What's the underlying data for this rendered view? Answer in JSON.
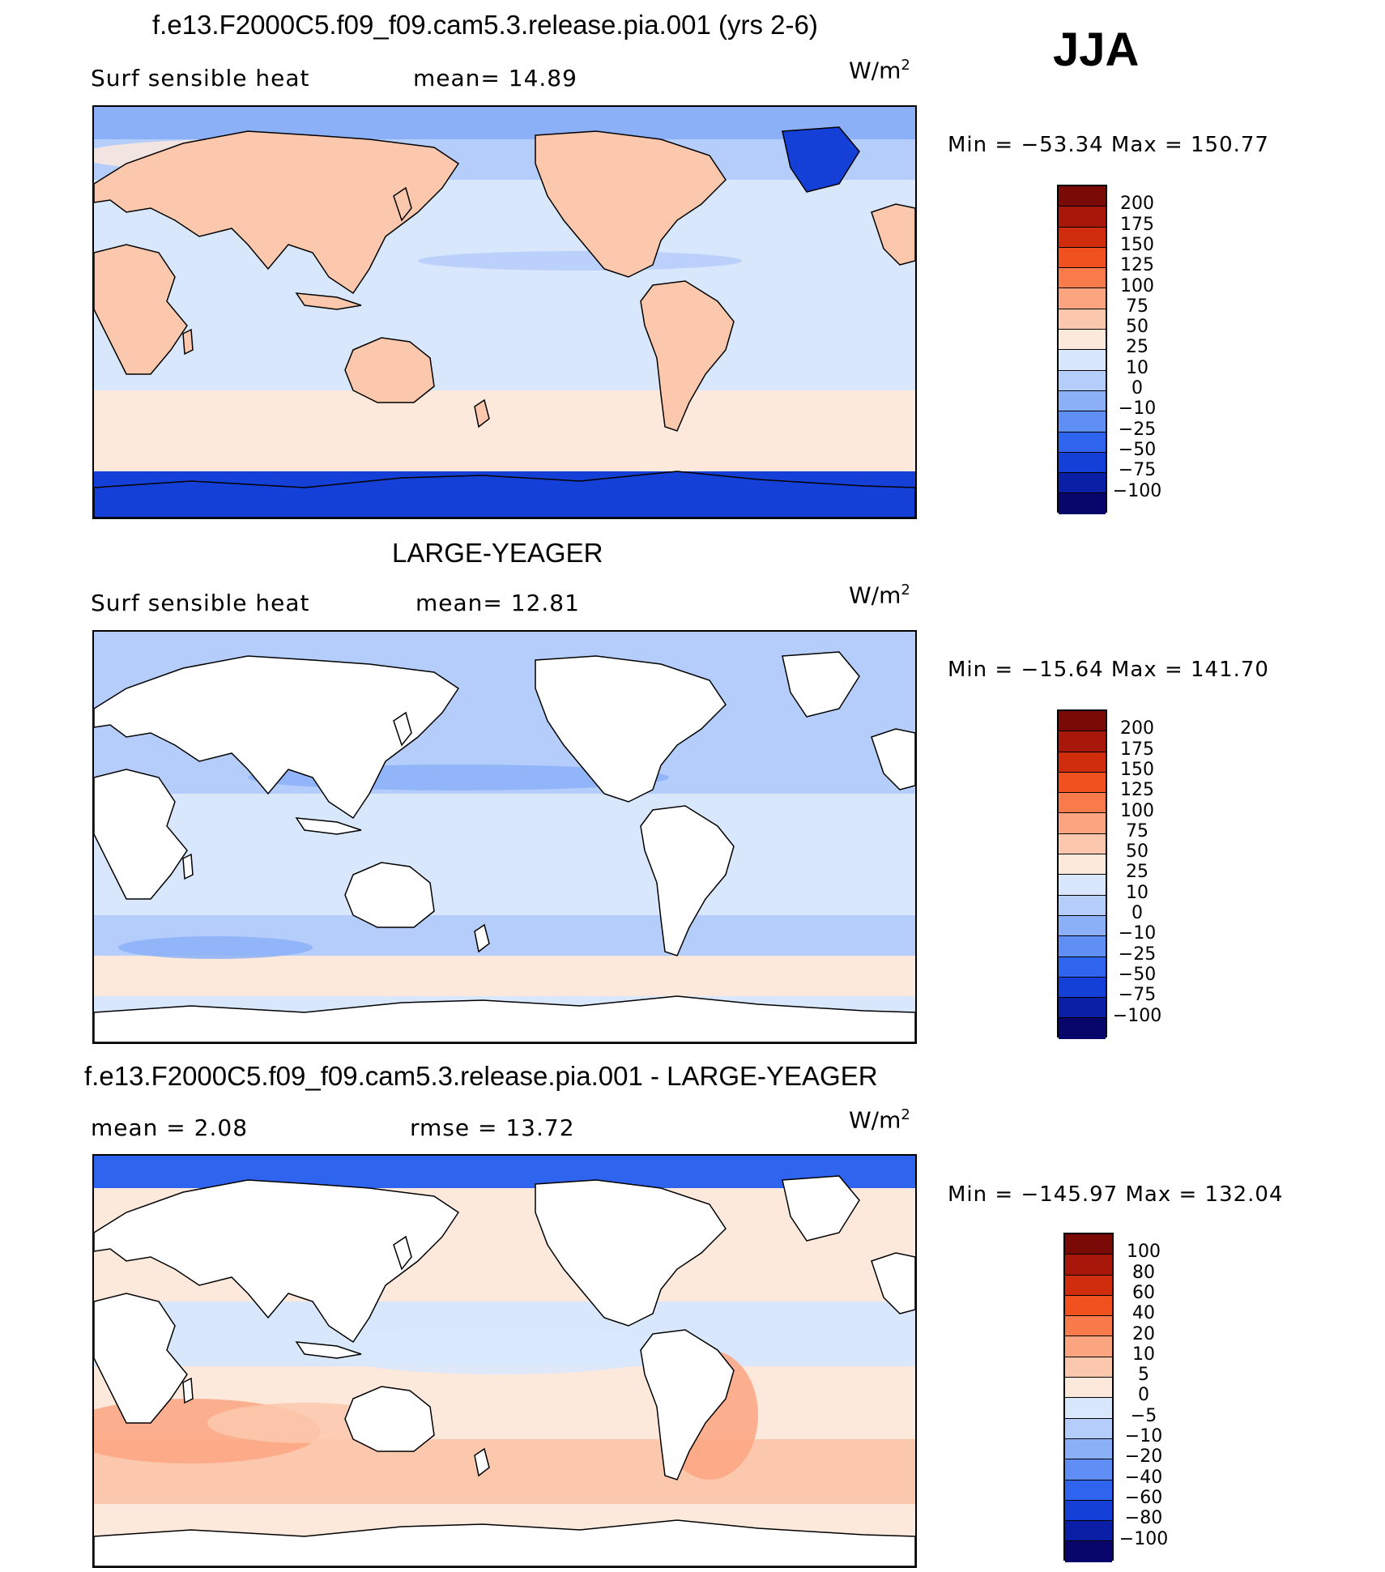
{
  "season": "JJA",
  "units_label": "W/m",
  "units_sup": "2",
  "colors": {
    "model_palette": [
      "#08056b",
      "#0a1fa6",
      "#1540d8",
      "#2f64ee",
      "#5f8ef5",
      "#8cb0f8",
      "#b5cdfb",
      "#d9e7fd",
      "#fde8dc",
      "#fcc8ad",
      "#fba480",
      "#f97a4a",
      "#f0511f",
      "#cf2d0d",
      "#a8180a",
      "#7a0a06"
    ],
    "diff_palette": [
      "#08056b",
      "#0a1fa6",
      "#1540d8",
      "#2f64ee",
      "#5f8ef5",
      "#8cb0f8",
      "#b5cdfb",
      "#d9e7fd",
      "#fde8dc",
      "#fcc8ad",
      "#fba480",
      "#f97a4a",
      "#f0511f",
      "#cf2d0d",
      "#a8180a",
      "#7a0a06"
    ],
    "land_white": "#ffffff",
    "coastline": "#000000"
  },
  "panels": [
    {
      "title": "f.e13.F2000C5.f09_f09.cam5.3.release.pia.001 (yrs 2-6)",
      "left_label": "Surf  sensible  heat",
      "stat_label": "mean=  14.89",
      "minmax": "Min  =  −53.34  Max  =  150.77",
      "colorbar_ticks": [
        "200",
        "175",
        "150",
        "125",
        "100",
        "75",
        "50",
        "25",
        "10",
        "0",
        "−10",
        "−25",
        "−50",
        "−75",
        "−100"
      ],
      "land_filled": true
    },
    {
      "title": "LARGE-YEAGER",
      "left_label": "Surf  sensible  heat",
      "stat_label": "mean=  12.81",
      "minmax": "Min  =  −15.64  Max  =  141.70",
      "colorbar_ticks": [
        "200",
        "175",
        "150",
        "125",
        "100",
        "75",
        "50",
        "25",
        "10",
        "0",
        "−10",
        "−25",
        "−50",
        "−75",
        "−100"
      ],
      "land_filled": false
    },
    {
      "title": "f.e13.F2000C5.f09_f09.cam5.3.release.pia.001 - LARGE-YEAGER",
      "left_label": "mean  =    2.08",
      "stat_label": "rmse  =    13.72",
      "minmax": "Min  =  −145.97  Max  =  132.04",
      "colorbar_ticks": [
        "100",
        "80",
        "60",
        "40",
        "20",
        "10",
        "5",
        "0",
        "−5",
        "−10",
        "−20",
        "−40",
        "−60",
        "−80",
        "−100"
      ],
      "land_filled": false
    }
  ]
}
